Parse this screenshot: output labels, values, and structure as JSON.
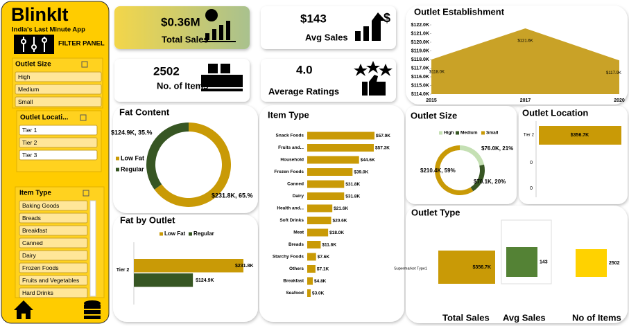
{
  "sidebar": {
    "brand": "BlinkIt",
    "tagline": "India's Last Minute App",
    "panel_label": "FILTER PANEL",
    "slicers": [
      {
        "title": "Outlet Size",
        "items": [
          "High",
          "Medium",
          "Small"
        ]
      },
      {
        "title": "Outlet Locati...",
        "items": [
          "Tier 1",
          "Tier 2",
          "Tier 3"
        ]
      },
      {
        "title": "Item Type",
        "items": [
          "Baking Goods",
          "Breads",
          "Breakfast",
          "Canned",
          "Dairy",
          "Frozen Foods",
          "Fruits and Vegetables",
          "Hard Drinks"
        ]
      }
    ]
  },
  "kpis": [
    {
      "value": "$0.36M",
      "label": "Total Sales"
    },
    {
      "value": "$143",
      "label": "Avg Sales"
    },
    {
      "value": "2502",
      "label": "No. of Items"
    },
    {
      "value": "4.0",
      "label": "Average Ratings"
    }
  ],
  "chart_data": [
    {
      "type": "area",
      "title": "Outlet Establishment",
      "categories": [
        "2015",
        "2017",
        "2020"
      ],
      "values": [
        118.0,
        121.6,
        117.9
      ],
      "value_labels": [
        "$118.0K",
        "$121.6K",
        "$117.9K"
      ],
      "color": "#c9a227",
      "ylim": [
        114,
        122
      ],
      "yticks": [
        {
          "value": 114,
          "label": "$114.0K"
        },
        {
          "value": 115,
          "label": "$115.0K"
        },
        {
          "value": 116,
          "label": "$116.0K"
        },
        {
          "value": 117,
          "label": "$117.0K"
        },
        {
          "value": 118,
          "label": "$118.0K"
        },
        {
          "value": 119,
          "label": "$119.0K"
        },
        {
          "value": 120,
          "label": "$120.0K"
        },
        {
          "value": 121,
          "label": "$121.0K"
        },
        {
          "value": 122,
          "label": "$122.0K"
        }
      ]
    },
    {
      "type": "donut",
      "title": "Fat Content",
      "categories": [
        "Low Fat",
        "Regular"
      ],
      "values": [
        231.8,
        124.9
      ],
      "value_labels": [
        "$231.8K, 65.%",
        "$124.9K, 35.%"
      ],
      "colors": [
        "#c99a06",
        "#375623"
      ]
    },
    {
      "type": "hbar",
      "title": "Item Type",
      "categories": [
        "Snack Foods",
        "Fruits and...",
        "Household",
        "Frozen Foods",
        "Canned",
        "Dairy",
        "Health and...",
        "Soft Drinks",
        "Meat",
        "Breads",
        "Starchy Foods",
        "Others",
        "Breakfast",
        "Seafood"
      ],
      "values": [
        57.9,
        57.3,
        44.6,
        39.0,
        31.8,
        31.8,
        21.6,
        20.6,
        18.0,
        11.6,
        7.6,
        7.1,
        4.8,
        3.0
      ],
      "value_labels": [
        "$57.9K",
        "$57.3K",
        "$44.6K",
        "$39.0K",
        "$31.8K",
        "$31.8K",
        "$21.6K",
        "$20.6K",
        "$18.0K",
        "$11.6K",
        "$7.6K",
        "$7.1K",
        "$4.8K",
        "$3.0K"
      ],
      "color": "#c99a06"
    },
    {
      "type": "grouped_hbar",
      "title": "Fat by Outlet",
      "categories": [
        "Tier 2"
      ],
      "series": [
        {
          "name": "Low Fat",
          "color": "#c99a06",
          "values": [
            231.8
          ],
          "value_labels": [
            "$231.8K"
          ]
        },
        {
          "name": "Regular",
          "color": "#375623",
          "values": [
            124.9
          ],
          "value_labels": [
            "$124.9K"
          ]
        }
      ],
      "legend": "top"
    },
    {
      "type": "donut",
      "title": "Outlet Size",
      "categories": [
        "High",
        "Medium",
        "Small"
      ],
      "values": [
        76.0,
        70.1,
        210.4
      ],
      "value_labels": [
        "$76.0K, 21%",
        "$70.1K, 20%",
        "$210.4K, 59%"
      ],
      "colors": [
        "#c5e0b4",
        "#375623",
        "#c99a06"
      ]
    },
    {
      "type": "location_bar",
      "title": "Outlet Location",
      "categories": [
        "Tier 2"
      ],
      "values": [
        356.7
      ],
      "value_labels": [
        "$356.7K"
      ],
      "axis_labels": [
        0,
        0
      ],
      "color": "#c99a06"
    },
    {
      "type": "outlet_type",
      "title": "Outlet Type",
      "categories": [
        "Supermarket Type1"
      ],
      "series": [
        {
          "name": "Total Sales",
          "color": "#c99a06",
          "values": [
            356.7
          ],
          "value_labels": [
            "$356.7K"
          ]
        },
        {
          "name": "Avg Sales",
          "color": "#548235",
          "values": [
            143
          ],
          "value_labels": [
            "143"
          ]
        },
        {
          "name": "No of Items",
          "color": "#ffd200",
          "values": [
            2502
          ],
          "value_labels": [
            "2502"
          ]
        }
      ]
    }
  ]
}
